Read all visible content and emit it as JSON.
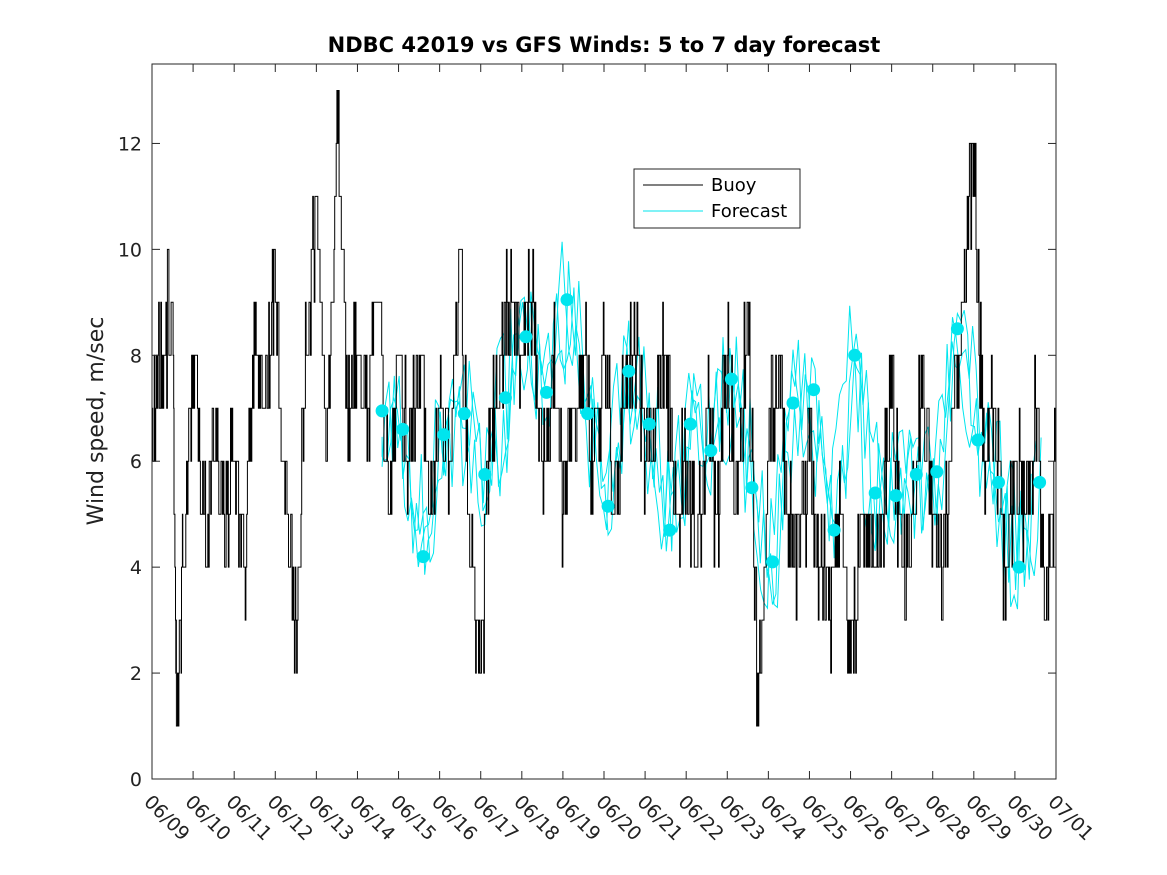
{
  "chart_data": {
    "type": "line",
    "title": "NDBC 42019 vs GFS Winds: 5 to 7 day forecast",
    "xlabel": "",
    "ylabel": "Wind speed, m/sec",
    "ylim": [
      0,
      13.5
    ],
    "yticks": [
      0,
      2,
      4,
      6,
      8,
      10,
      12
    ],
    "xlim": [
      "06/09",
      "07/01"
    ],
    "xticks": [
      "06/09",
      "06/10",
      "06/11",
      "06/12",
      "06/13",
      "06/14",
      "06/15",
      "06/16",
      "06/17",
      "06/18",
      "06/19",
      "06/20",
      "06/21",
      "06/22",
      "06/23",
      "06/24",
      "06/25",
      "06/26",
      "06/27",
      "06/28",
      "06/29",
      "06/30",
      "07/01"
    ],
    "grid": false,
    "legend_position": "top-center",
    "colors": {
      "buoy": "#000000",
      "forecast": "#00e5ee"
    },
    "series": [
      {
        "name": "Buoy",
        "x_days": [
          0,
          0.25,
          0.5,
          0.6,
          0.75,
          1,
          1.25,
          1.5,
          1.75,
          2,
          2.25,
          2.5,
          2.75,
          3,
          3.25,
          3.5,
          3.75,
          4,
          4.25,
          4.5,
          4.75,
          5,
          5.25,
          5.5,
          5.75,
          6,
          6.25,
          6.5,
          6.75,
          7,
          7.25,
          7.5,
          7.75,
          8,
          8.25,
          8.5,
          8.75,
          9,
          9.25,
          9.5,
          9.75,
          10,
          10.25,
          10.5,
          10.75,
          11,
          11.25,
          11.5,
          11.75,
          12,
          12.25,
          12.5,
          12.75,
          13,
          13.25,
          13.5,
          13.75,
          14,
          14.25,
          14.5,
          14.75,
          15,
          15.25,
          15.5,
          15.75,
          16,
          16.25,
          16.5,
          16.75,
          17,
          17.25,
          17.5,
          17.75,
          18,
          18.25,
          18.5,
          18.75,
          19,
          19.25,
          19.5,
          19.75,
          20,
          20.25,
          20.5,
          20.75,
          21,
          21.25,
          21.5,
          21.75,
          22
        ],
        "values": [
          7,
          8,
          9,
          1,
          4,
          8,
          5,
          6,
          5,
          6,
          4,
          8,
          7,
          9,
          6,
          3,
          8,
          11,
          6,
          13,
          7,
          8,
          7,
          9,
          5,
          8,
          6,
          8,
          5,
          7,
          6,
          10,
          4,
          2,
          7,
          8,
          9,
          8,
          9,
          6,
          8,
          5,
          7,
          8,
          6,
          8,
          5,
          7,
          8,
          6,
          7,
          8,
          5,
          6,
          4,
          7,
          5,
          8,
          5,
          9,
          1,
          6,
          8,
          5,
          4,
          6,
          4,
          3,
          5,
          2,
          5,
          4,
          5,
          7,
          4,
          5,
          8,
          5,
          4,
          7,
          9,
          12,
          6,
          7,
          4,
          6,
          5,
          7,
          3,
          6
        ]
      },
      {
        "name": "Forecast",
        "x_days": [
          5.6,
          6.1,
          6.6,
          7.1,
          7.6,
          8.1,
          8.6,
          9.1,
          9.6,
          10.1,
          10.6,
          11.1,
          11.6,
          12.1,
          12.6,
          13.1,
          13.6,
          14.1,
          14.6,
          15.1,
          15.6,
          16.1,
          16.6,
          17.1,
          17.6,
          18.1,
          18.6,
          19.1,
          19.6,
          20.1,
          20.6,
          21.1,
          21.6
        ],
        "values": [
          6.95,
          6.6,
          4.2,
          6.5,
          6.9,
          5.75,
          7.2,
          8.35,
          7.3,
          9.05,
          6.9,
          5.15,
          7.7,
          6.7,
          4.7,
          6.7,
          6.2,
          7.55,
          5.5,
          4.1,
          7.1,
          7.35,
          4.7,
          8.0,
          5.4,
          5.35,
          5.75,
          5.8,
          8.5,
          6.4,
          5.6,
          4.0,
          5.6
        ]
      }
    ]
  }
}
